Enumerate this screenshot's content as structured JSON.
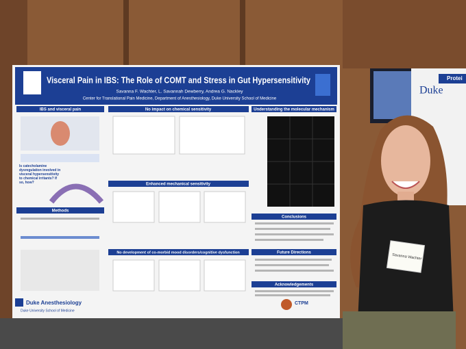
{
  "poster": {
    "title": "Visceral Pain in IBS: The Role of COMT and Stress in Gut Hypersensitivity",
    "authors": "Savanna F. Wachter, L. Savannah Dewberry, Andrea G. Nackley",
    "affiliation": "Center for Translational Pain Medicine, Department of Anesthesiology, Duke University School of Medicine",
    "sections": {
      "ibs": "IBS and visceral pain",
      "chemical": "No impact on chemical sensitivity",
      "molecular": "Understanding the molecular mechanism",
      "mechanical": "Enhanced mechanical sensitivity",
      "methods": "Methods",
      "conclusions": "Conclusions",
      "mood": "No development of co-morbid mood disorders/cognitive dysfunction",
      "future": "Future Directions",
      "acknowledgements": "Acknowledgements"
    },
    "question": "Is catecholamine dysregulation involved in visceral hypersensitivity to chemical irritants? If so, how?",
    "footer_logo": "Duke Anesthesiology",
    "footer_sub": "Duke University School of Medicine",
    "ctpm": "CTPM"
  },
  "side_poster": {
    "logo": "Duke",
    "heading": "Protei"
  },
  "badge": {
    "name": "Savanna Wachter"
  }
}
